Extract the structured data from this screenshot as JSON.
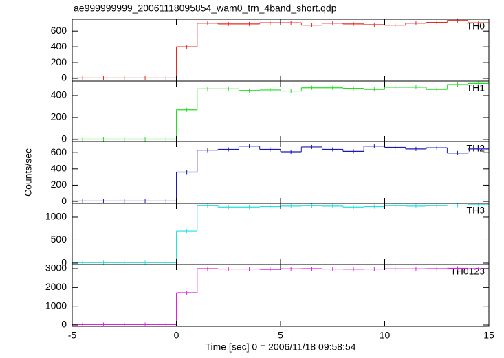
{
  "chart_data": [
    {
      "type": "line",
      "title": "ae999999999_20061118095854_wam0_trn_4band_short.qdp",
      "x": [
        -4.5,
        -3.5,
        -2.5,
        -1.5,
        -0.5,
        0.5,
        1.5,
        2.5,
        3.5,
        4.5,
        5.5,
        6.5,
        7.5,
        8.5,
        9.5,
        10.5,
        11.5,
        12.5,
        13.5,
        14.5
      ],
      "series": [
        {
          "name": "TH0",
          "color": "#e8281e",
          "values": [
            5,
            5,
            5,
            5,
            5,
            400,
            700,
            690,
            690,
            705,
            705,
            675,
            700,
            690,
            680,
            675,
            700,
            710,
            735,
            705
          ]
        }
      ],
      "ylim": [
        -35,
        750
      ],
      "yticks": [
        0,
        200,
        400,
        600
      ]
    },
    {
      "type": "line",
      "x": [
        -4.5,
        -3.5,
        -2.5,
        -1.5,
        -0.5,
        0.5,
        1.5,
        2.5,
        3.5,
        4.5,
        5.5,
        6.5,
        7.5,
        8.5,
        9.5,
        10.5,
        11.5,
        12.5,
        13.5,
        14.5
      ],
      "series": [
        {
          "name": "TH1",
          "color": "#22dd22",
          "values": [
            3,
            3,
            3,
            3,
            3,
            270,
            460,
            460,
            445,
            450,
            440,
            470,
            470,
            465,
            455,
            475,
            475,
            455,
            500,
            510
          ]
        }
      ],
      "ylim": [
        -19,
        531
      ],
      "yticks": [
        0,
        200,
        400
      ]
    },
    {
      "type": "line",
      "ylabel": "Counts/sec",
      "x": [
        -4.5,
        -3.5,
        -2.5,
        -1.5,
        -0.5,
        0.5,
        1.5,
        2.5,
        3.5,
        4.5,
        5.5,
        6.5,
        7.5,
        8.5,
        9.5,
        10.5,
        11.5,
        12.5,
        13.5,
        14.5
      ],
      "series": [
        {
          "name": "TH2",
          "color": "#1a1ab4",
          "values": [
            5,
            5,
            5,
            5,
            5,
            360,
            630,
            640,
            680,
            640,
            610,
            670,
            640,
            615,
            680,
            665,
            645,
            660,
            595,
            645
          ]
        }
      ],
      "ylim": [
        -25,
        737
      ],
      "yticks": [
        0,
        200,
        400,
        600
      ]
    },
    {
      "type": "line",
      "x": [
        -4.5,
        -3.5,
        -2.5,
        -1.5,
        -0.5,
        0.5,
        1.5,
        2.5,
        3.5,
        4.5,
        5.5,
        6.5,
        7.5,
        8.5,
        9.5,
        10.5,
        11.5,
        12.5,
        13.5,
        14.5
      ],
      "series": [
        {
          "name": "TH3",
          "color": "#22e0e0",
          "values": [
            10,
            10,
            10,
            10,
            10,
            700,
            1250,
            1220,
            1220,
            1230,
            1240,
            1250,
            1240,
            1220,
            1230,
            1250,
            1240,
            1250,
            1260,
            1270
          ]
        }
      ],
      "ylim": [
        -30,
        1298
      ],
      "yticks": [
        0,
        500,
        1000
      ]
    },
    {
      "type": "line",
      "xlabel": "Time [sec] 0 = 2006/11/18 09:58:54",
      "x": [
        -4.5,
        -3.5,
        -2.5,
        -1.5,
        -0.5,
        0.5,
        1.5,
        2.5,
        3.5,
        4.5,
        5.5,
        6.5,
        7.5,
        8.5,
        9.5,
        10.5,
        11.5,
        12.5,
        13.5,
        14.5
      ],
      "series": [
        {
          "name": "TH0123",
          "color": "#e020e0",
          "values": [
            20,
            20,
            20,
            20,
            20,
            1720,
            3000,
            2980,
            2980,
            2960,
            2990,
            3000,
            2980,
            2970,
            2980,
            2990,
            2990,
            3000,
            3020,
            3000
          ]
        }
      ],
      "ylim": [
        -73,
        3220
      ],
      "yticks": [
        0,
        1000,
        2000,
        3000
      ],
      "xlim": [
        -5,
        15
      ],
      "xticks": [
        -5,
        0,
        5,
        10,
        15
      ]
    }
  ]
}
